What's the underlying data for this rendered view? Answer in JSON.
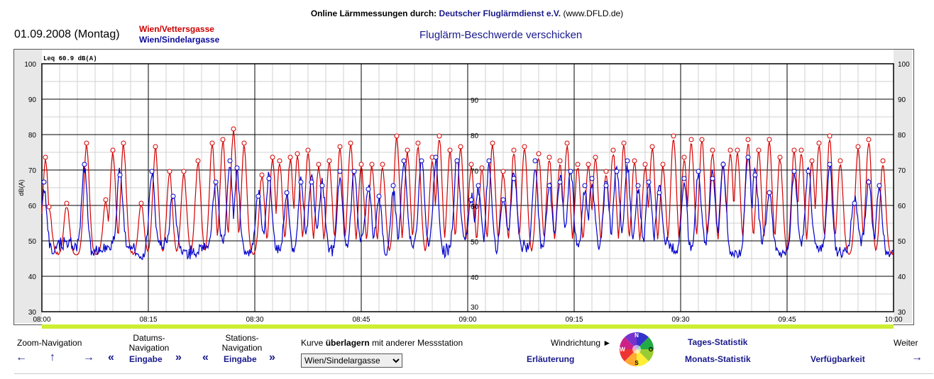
{
  "header": {
    "title_prefix": "Online Lärmmessungen durch:",
    "title_org": "Deutscher Fluglärmdienst e.V.",
    "title_url": "(www.DFLD.de)",
    "date": "01.09.2008 (Montag)",
    "station_1": "Wien/Vettersgasse",
    "station_2": "Wien/Sindelargasse",
    "complaint_link": "Fluglärm-Beschwerde verschicken"
  },
  "colors": {
    "station_1": "#d40000",
    "station_2": "#0000cc",
    "highlight_bar": "#ccee33",
    "link": "#1a1a8c"
  },
  "chart_data": {
    "type": "line",
    "leq_label": "Leq 60.9 dB(A)",
    "ylabel": "dB(A)",
    "ylim": [
      30,
      100
    ],
    "y_ticks": [
      "30",
      "40",
      "50",
      "60",
      "70",
      "80",
      "90",
      "100"
    ],
    "secondary_y_ticks": [
      "30",
      "40",
      "50",
      "60",
      "70",
      "80",
      "90"
    ],
    "xlim": [
      "08:00",
      "10:00"
    ],
    "x_ticks": [
      "08:00",
      "08:15",
      "08:30",
      "08:45",
      "09:00",
      "09:15",
      "09:30",
      "09:45",
      "10:00"
    ],
    "grid": true,
    "series": [
      {
        "name": "Wien/Vettersgasse",
        "baseline_db": 46,
        "peaks": [
          [
            "08:00.5",
            73
          ],
          [
            "08:01.0",
            59
          ],
          [
            "08:03.5",
            60
          ],
          [
            "08:06.3",
            77
          ],
          [
            "08:09.0",
            61
          ],
          [
            "08:10.0",
            75
          ],
          [
            "08:11.5",
            77
          ],
          [
            "08:14.0",
            60
          ],
          [
            "08:16.0",
            76
          ],
          [
            "08:18.0",
            69
          ],
          [
            "08:20.0",
            69
          ],
          [
            "08:22.0",
            72
          ],
          [
            "08:24.0",
            77
          ],
          [
            "08:25.5",
            78
          ],
          [
            "08:27.0",
            81
          ],
          [
            "08:28.5",
            77
          ],
          [
            "08:31.0",
            68
          ],
          [
            "08:32.5",
            73
          ],
          [
            "08:33.5",
            72
          ],
          [
            "08:35.0",
            73
          ],
          [
            "08:36.0",
            74
          ],
          [
            "08:37.5",
            75
          ],
          [
            "08:39.0",
            71
          ],
          [
            "08:40.5",
            72
          ],
          [
            "08:42.0",
            76
          ],
          [
            "08:43.5",
            77
          ],
          [
            "08:45.0",
            71
          ],
          [
            "08:46.5",
            71
          ],
          [
            "08:48.0",
            71
          ],
          [
            "08:50.0",
            79
          ],
          [
            "08:51.5",
            75
          ],
          [
            "08:53.0",
            77
          ],
          [
            "08:55.0",
            73
          ],
          [
            "08:56.0",
            79
          ],
          [
            "08:57.5",
            75
          ],
          [
            "08:59.0",
            76
          ],
          [
            "09:00.5",
            71
          ],
          [
            "09:02.0",
            70
          ],
          [
            "09:03.5",
            77
          ],
          [
            "09:05.0",
            69
          ],
          [
            "09:06.5",
            75
          ],
          [
            "09:08.0",
            76
          ],
          [
            "09:10.0",
            74
          ],
          [
            "09:11.5",
            73
          ],
          [
            "09:13.0",
            72
          ],
          [
            "09:14.0",
            77
          ],
          [
            "09:15.5",
            71
          ],
          [
            "09:17.0",
            71
          ],
          [
            "09:18.0",
            73
          ],
          [
            "09:19.5",
            69
          ],
          [
            "09:20.5",
            75
          ],
          [
            "09:22.0",
            77
          ],
          [
            "09:23.5",
            72
          ],
          [
            "09:25.0",
            71
          ],
          [
            "09:26.0",
            76
          ],
          [
            "09:27.5",
            71
          ],
          [
            "09:29.0",
            79
          ],
          [
            "09:30.5",
            73
          ],
          [
            "09:31.5",
            78
          ],
          [
            "09:33.0",
            78
          ],
          [
            "09:34.5",
            75
          ],
          [
            "09:36.0",
            71
          ],
          [
            "09:37.0",
            75
          ],
          [
            "09:38.0",
            75
          ],
          [
            "09:39.5",
            78
          ],
          [
            "09:41.0",
            75
          ],
          [
            "09:42.5",
            78
          ],
          [
            "09:44.0",
            73
          ],
          [
            "09:46.0",
            75
          ],
          [
            "09:47.0",
            75
          ],
          [
            "09:48.5",
            72
          ],
          [
            "09:49.5",
            77
          ],
          [
            "09:51.0",
            79
          ],
          [
            "09:52.5",
            72
          ],
          [
            "09:55.0",
            76
          ],
          [
            "09:56.5",
            78
          ],
          [
            "09:58.5",
            72
          ]
        ]
      },
      {
        "name": "Wien/Sindelargasse",
        "baseline_db": 47,
        "peaks": [
          [
            "08:00.3",
            66
          ],
          [
            "08:06.0",
            71
          ],
          [
            "08:11.0",
            68
          ],
          [
            "08:15.5",
            69
          ],
          [
            "08:18.5",
            62
          ],
          [
            "08:24.5",
            66
          ],
          [
            "08:26.5",
            72
          ],
          [
            "08:27.5",
            70
          ],
          [
            "08:30.5",
            62
          ],
          [
            "08:32.0",
            67
          ],
          [
            "08:34.5",
            63
          ],
          [
            "08:36.5",
            66
          ],
          [
            "08:38.0",
            66
          ],
          [
            "08:39.5",
            65
          ],
          [
            "08:42.0",
            69
          ],
          [
            "08:44.0",
            69
          ],
          [
            "08:46.0",
            64
          ],
          [
            "08:47.5",
            62
          ],
          [
            "08:49.5",
            65
          ],
          [
            "08:51.0",
            72
          ],
          [
            "08:53.5",
            72
          ],
          [
            "08:55.5",
            73
          ],
          [
            "08:58.5",
            72
          ],
          [
            "09:00.5",
            61
          ],
          [
            "09:01.5",
            65
          ],
          [
            "09:03.0",
            72
          ],
          [
            "09:05.0",
            61
          ],
          [
            "09:06.5",
            67
          ],
          [
            "09:09.5",
            72
          ],
          [
            "09:11.5",
            65
          ],
          [
            "09:13.0",
            66
          ],
          [
            "09:14.5",
            69
          ],
          [
            "09:16.5",
            65
          ],
          [
            "09:17.5",
            67
          ],
          [
            "09:19.5",
            65
          ],
          [
            "09:21.0",
            69
          ],
          [
            "09:22.5",
            72
          ],
          [
            "09:24.0",
            65
          ],
          [
            "09:25.5",
            66
          ],
          [
            "09:27.0",
            63
          ],
          [
            "09:30.5",
            67
          ],
          [
            "09:32.5",
            69
          ],
          [
            "09:34.5",
            67
          ],
          [
            "09:36.0",
            71
          ],
          [
            "09:39.5",
            73
          ],
          [
            "09:40.5",
            68
          ],
          [
            "09:42.5",
            63
          ],
          [
            "09:46.0",
            69
          ],
          [
            "09:48.0",
            69
          ],
          [
            "09:51.0",
            71
          ],
          [
            "09:54.5",
            60
          ],
          [
            "09:56.5",
            66
          ],
          [
            "09:58.0",
            65
          ]
        ]
      }
    ]
  },
  "nav": {
    "zoom_label": "Zoom-Navigation",
    "date_label_1": "Datums-",
    "date_label_2": "Navigation",
    "station_label_1": "Stations-",
    "station_label_2": "Navigation",
    "entry_link": "Eingabe",
    "overlay_pre": "Kurve",
    "overlay_bold": "überlagern",
    "overlay_post": "mit anderer Messstation",
    "overlay_selected": "Wien/Sindelargasse",
    "wind_label": "Windrichtung",
    "explanation_link": "Erläuterung",
    "daily_stats": "Tages-Statistik",
    "monthly_stats": "Monats-Statistik",
    "availability": "Verfügbarkeit",
    "next_label": "Weiter",
    "compass": {
      "n": "N",
      "o": "O",
      "s": "S",
      "w": "W"
    },
    "arrows": {
      "left": "←",
      "up": "↑",
      "right": "→",
      "double_left": "«",
      "double_right": "»",
      "triangle": "►"
    }
  }
}
